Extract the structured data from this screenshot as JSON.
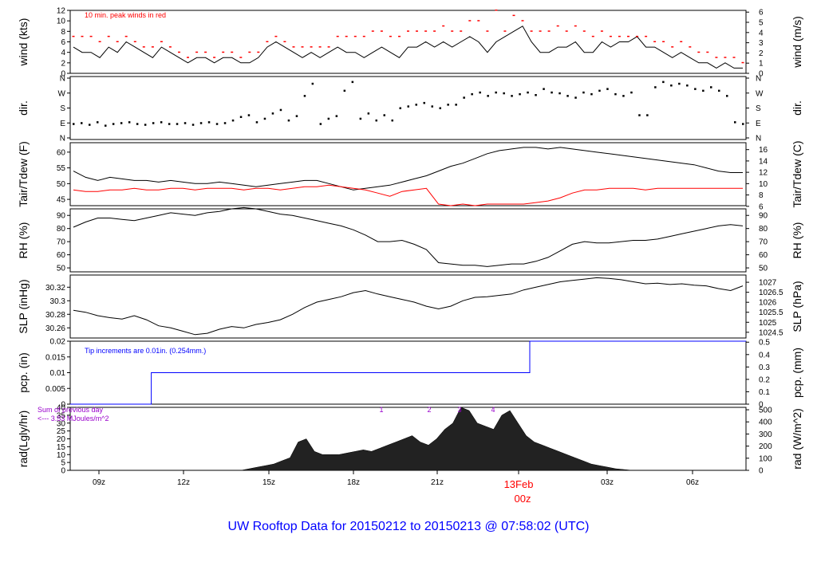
{
  "title": "UW Rooftop Data for 20150212  to  20150213 @ 07:58:02  (UTC)",
  "colors": {
    "title": "#0000ff",
    "red": "#ff0000",
    "blue": "#0000ff",
    "purple": "#9900cc",
    "line": "#000000"
  },
  "chart_data": {
    "type": "line",
    "x_ticks": [
      "09z",
      "12z",
      "15z",
      "18z",
      "21z",
      "13Feb",
      "03z",
      "06z"
    ],
    "x_date_label": "13Feb",
    "x_date_sub": "00z",
    "panels": [
      {
        "id": "wind",
        "ylabel_left": "wind (kts)",
        "ylabel_right": "wind (m/s)",
        "left_ticks": [
          0,
          2,
          4,
          6,
          8,
          10,
          12
        ],
        "right_ticks": [
          0,
          1,
          2,
          3,
          4,
          5,
          6
        ],
        "note": "10 min. peak winds in red",
        "series": [
          {
            "name": "wind speed",
            "values": [
              5,
              4,
              4,
              3,
              5,
              4,
              6,
              5,
              4,
              3,
              5,
              4,
              3,
              2,
              3,
              3,
              2,
              3,
              3,
              2,
              2,
              3,
              5,
              6,
              5,
              4,
              3,
              4,
              3,
              4,
              5,
              4,
              4,
              3,
              4,
              5,
              4,
              3,
              5,
              5,
              6,
              5,
              6,
              5,
              6,
              7,
              6,
              4,
              6,
              7,
              8,
              9,
              6,
              4,
              4,
              5,
              5,
              6,
              4,
              4,
              6,
              5,
              6,
              6,
              7,
              5,
              5,
              4,
              3,
              4,
              3,
              2,
              2,
              1,
              2,
              1,
              1
            ]
          },
          {
            "name": "peak gust",
            "values": [
              7,
              7,
              7,
              6,
              7,
              6,
              7,
              6,
              5,
              5,
              6,
              5,
              4,
              3,
              4,
              4,
              3,
              4,
              4,
              3,
              4,
              4,
              6,
              7,
              6,
              5,
              5,
              5,
              5,
              5,
              7,
              7,
              7,
              7,
              8,
              8,
              7,
              7,
              8,
              8,
              8,
              8,
              9,
              8,
              8,
              10,
              10,
              8,
              12,
              8,
              11,
              10,
              8,
              8,
              8,
              9,
              8,
              9,
              8,
              7,
              8,
              7,
              7,
              7,
              7,
              7,
              6,
              6,
              5,
              6,
              5,
              4,
              4,
              3,
              3,
              3,
              2
            ]
          }
        ]
      },
      {
        "id": "dir",
        "ylabel": "dir.",
        "ticks": [
          "N",
          "E",
          "S",
          "W",
          "N"
        ],
        "series": [
          {
            "name": "direction",
            "values": [
              90,
              95,
              85,
              100,
              80,
              90,
              95,
              100,
              90,
              85,
              95,
              100,
              90,
              90,
              95,
              85,
              95,
              100,
              90,
              95,
              110,
              130,
              140,
              100,
              120,
              150,
              170,
              110,
              135,
              250,
              320,
              90,
              120,
              135,
              280,
              330,
              120,
              150,
              110,
              140,
              110,
              180,
              190,
              200,
              210,
              190,
              180,
              200,
              200,
              240,
              260,
              270,
              250,
              270,
              265,
              250,
              260,
              270,
              255,
              290,
              270,
              265,
              250,
              240,
              270,
              260,
              280,
              290,
              260,
              250,
              270,
              140,
              140,
              300,
              330,
              310,
              320,
              310,
              290,
              280,
              300,
              280,
              250,
              100,
              90
            ]
          }
        ]
      },
      {
        "id": "temp",
        "ylabel_left": "Tair/Tdew (F)",
        "ylabel_right": "Tair/Tdew (C)",
        "left_ticks": [
          45,
          50,
          55,
          60
        ],
        "right_ticks": [
          6,
          8,
          10,
          12,
          14,
          16
        ],
        "series": [
          {
            "name": "Tair",
            "values": [
              54,
              52,
              51,
              52,
              51.5,
              51,
              51,
              50.5,
              51,
              50.5,
              50,
              50,
              50.5,
              50,
              49.5,
              49,
              49.5,
              50,
              50.5,
              51,
              51,
              50,
              49,
              48,
              48.5,
              49,
              49.5,
              50.5,
              51.5,
              52.5,
              54,
              55.5,
              56.5,
              58,
              59.5,
              60.5,
              61,
              61.5,
              61.5,
              61,
              61.5,
              61,
              60.5,
              60,
              59.5,
              59,
              58.5,
              58,
              57.5,
              57,
              56.5,
              56,
              55,
              54,
              53.5,
              53.5
            ]
          },
          {
            "name": "Tdew",
            "values": [
              48,
              47.5,
              47.5,
              48,
              48,
              48.5,
              48,
              48,
              48.5,
              48.5,
              48,
              48.5,
              48.5,
              48.5,
              48,
              48.5,
              48.5,
              48,
              48.5,
              49,
              49,
              49.5,
              49,
              48.5,
              48,
              47,
              46,
              47.5,
              48,
              48.5,
              43.5,
              43,
              43.5,
              43,
              43.5,
              43.5,
              43.5,
              43.5,
              44,
              44.5,
              45.5,
              47,
              48,
              48,
              48.5,
              48.5,
              48.5,
              48,
              48.5,
              48.5,
              48.5,
              48.5,
              48.5,
              48.5,
              48.5,
              48.5
            ]
          }
        ]
      },
      {
        "id": "rh",
        "ylabel_left": "RH (%)",
        "ylabel_right": "RH (%)",
        "ticks": [
          50,
          60,
          70,
          80,
          90
        ],
        "series": [
          {
            "name": "RH",
            "values": [
              81,
              85,
              88,
              88,
              87,
              86,
              88,
              90,
              92,
              91,
              90,
              92,
              93,
              95,
              96,
              95,
              93,
              91,
              90,
              88,
              86,
              84,
              82,
              79,
              75,
              70,
              70,
              71,
              68,
              64,
              54,
              53,
              52,
              52,
              51,
              52,
              53,
              53,
              55,
              58,
              63,
              68,
              70,
              69,
              69,
              70,
              71,
              71,
              72,
              74,
              76,
              78,
              80,
              82,
              83,
              82
            ]
          }
        ]
      },
      {
        "id": "slp",
        "ylabel_left": "SLP (inHg)",
        "ylabel_right": "SLP (hPa)",
        "left_ticks": [
          30.26,
          30.28,
          30.3,
          30.32
        ],
        "right_ticks": [
          1024.5,
          1025,
          1025.5,
          1026,
          1026.5,
          1027
        ],
        "series": [
          {
            "name": "SLP",
            "values": [
              30.286,
              30.283,
              30.278,
              30.275,
              30.273,
              30.278,
              30.272,
              30.263,
              30.26,
              30.255,
              30.25,
              30.252,
              30.258,
              30.262,
              30.26,
              30.265,
              30.268,
              30.272,
              30.28,
              30.29,
              30.298,
              30.302,
              30.306,
              30.312,
              30.315,
              30.31,
              30.306,
              30.302,
              30.298,
              30.292,
              30.288,
              30.292,
              30.3,
              30.305,
              30.306,
              30.308,
              30.31,
              30.316,
              30.32,
              30.324,
              30.328,
              30.33,
              30.332,
              30.334,
              30.333,
              30.331,
              30.328,
              30.325,
              30.326,
              30.324,
              30.325,
              30.323,
              30.322,
              30.318,
              30.315,
              30.322
            ]
          }
        ]
      },
      {
        "id": "pcp",
        "ylabel_left": "pcp. (in)",
        "ylabel_right": "pcp. (mm)",
        "left_ticks": [
          0,
          0.005,
          0.01,
          0.015,
          0.02
        ],
        "right_ticks": [
          0,
          0.1,
          0.2,
          0.3,
          0.4,
          0.5
        ],
        "note": "Tip increments are 0.01in. (0.254mm.)",
        "series": [
          {
            "name": "precip",
            "values": [
              0,
              0,
              0,
              0.01,
              0.01,
              0.01,
              0.01,
              0.01,
              0.01,
              0.01,
              0.01,
              0.01,
              0.01,
              0.01,
              0.01,
              0.01,
              0.01,
              0.02,
              0.02,
              0.02,
              0.02,
              0.02,
              0.02,
              0.02,
              0.02,
              0.02
            ]
          }
        ]
      },
      {
        "id": "rad",
        "ylabel_left": "rad(Lgly/hr)",
        "ylabel_right": "rad (W/m^2)",
        "left_ticks": [
          0,
          5,
          10,
          15,
          20,
          25,
          30,
          35,
          40
        ],
        "right_ticks": [
          0,
          100,
          200,
          300,
          400,
          500
        ],
        "note_line1": "Sum of previous day",
        "note_line2": "<--- 3.53 MJoules/m^2",
        "markers": [
          "1",
          "2",
          "3",
          "4"
        ],
        "series": [
          {
            "name": "radiation",
            "values": [
              0,
              0,
              0,
              0,
              0,
              0,
              0,
              0,
              0,
              0,
              0,
              0,
              0,
              0,
              0,
              0,
              0,
              0,
              0,
              0,
              0,
              0,
              1,
              2,
              3,
              4,
              6,
              8,
              18,
              20,
              12,
              10,
              10,
              10,
              11,
              12,
              13,
              12,
              14,
              16,
              18,
              20,
              22,
              18,
              16,
              20,
              26,
              30,
              40,
              38,
              30,
              28,
              26,
              35,
              38,
              30,
              22,
              18,
              16,
              14,
              12,
              10,
              8,
              6,
              4,
              3,
              2,
              1,
              0.5,
              0,
              0,
              0,
              0,
              0,
              0,
              0,
              0,
              0,
              0,
              0,
              0,
              0,
              0,
              0
            ]
          }
        ]
      }
    ]
  }
}
